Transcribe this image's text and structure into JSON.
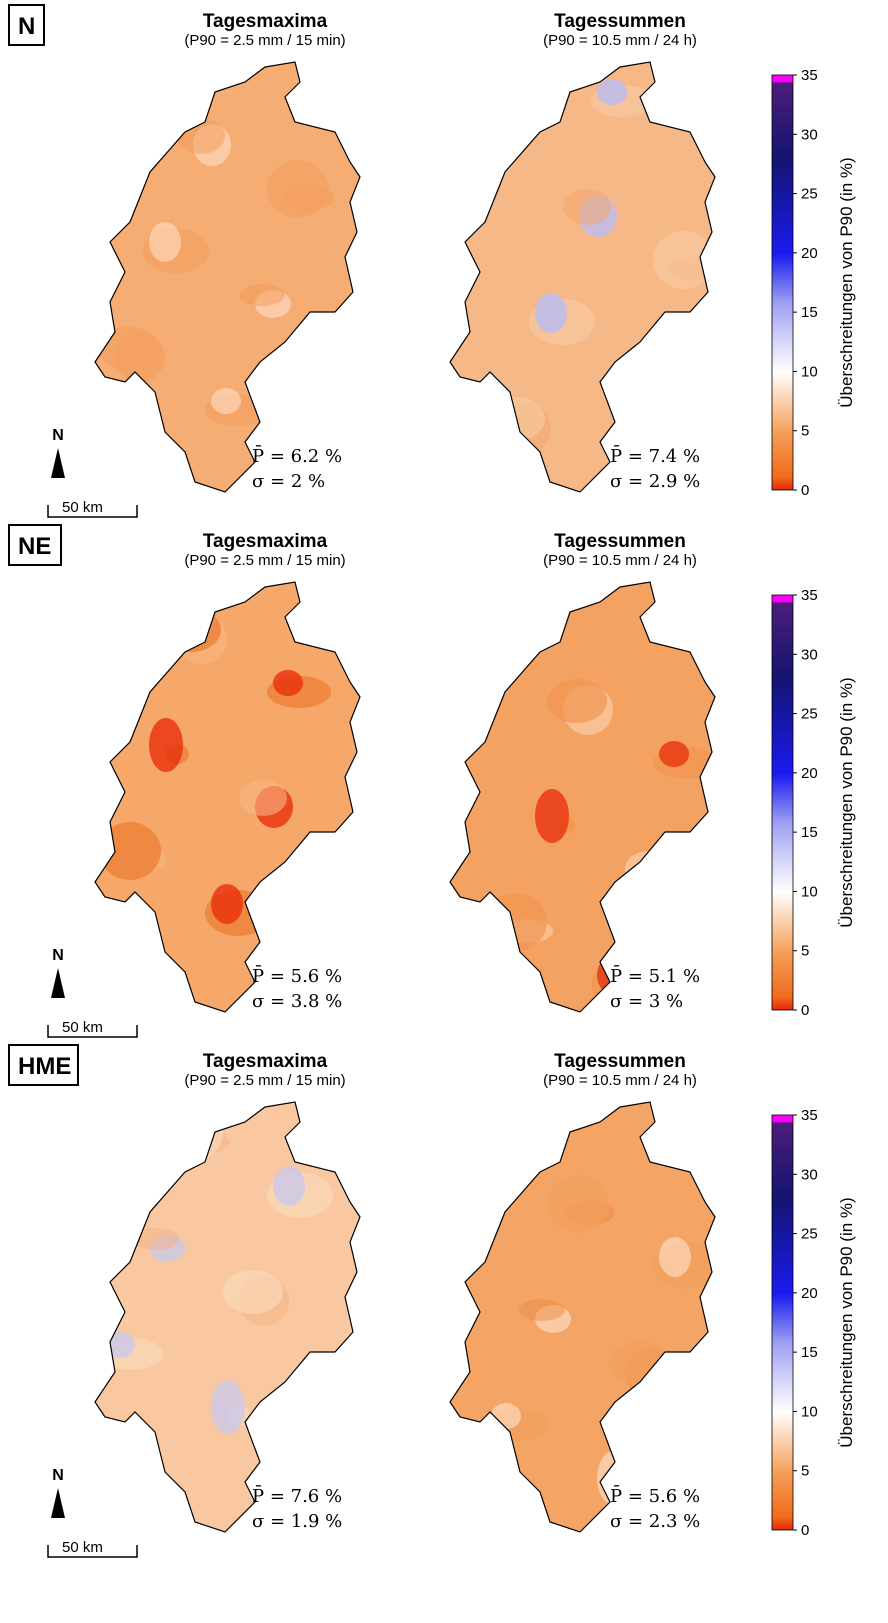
{
  "rows": [
    {
      "label": "N",
      "panels": [
        {
          "title": "Tagesmaxima",
          "subtitle": "(P90 = 2.5 mm / 15 min)",
          "mean": "P̄ = 6.2 %",
          "sd": "σ = 2 %"
        },
        {
          "title": "Tagessummen",
          "subtitle": "(P90 = 10.5 mm / 24 h)",
          "mean": "P̄ = 7.4 %",
          "sd": "σ = 2.9 %"
        }
      ]
    },
    {
      "label": "NE",
      "panels": [
        {
          "title": "Tagesmaxima",
          "subtitle": "(P90 = 2.5 mm / 15 min)",
          "mean": "P̄ = 5.6 %",
          "sd": "σ = 3.8 %"
        },
        {
          "title": "Tagessummen",
          "subtitle": "(P90 = 10.5 mm / 24 h)",
          "mean": "P̄ = 5.1 %",
          "sd": "σ = 3 %"
        }
      ]
    },
    {
      "label": "HME",
      "panels": [
        {
          "title": "Tagesmaxima",
          "subtitle": "(P90 = 2.5 mm / 15 min)",
          "mean": "P̄ = 7.6 %",
          "sd": "σ = 1.9 %"
        },
        {
          "title": "Tagessummen",
          "subtitle": "(P90 = 10.5 mm / 24 h)",
          "mean": "P̄ = 5.6 %",
          "sd": "σ = 2.3 %"
        }
      ]
    }
  ],
  "north": "N",
  "scale": "50 km",
  "colorbar": {
    "label": "Überschreitungen von P90 (in %)",
    "ticks": [
      0,
      5,
      10,
      15,
      20,
      25,
      30,
      35
    ]
  }
}
